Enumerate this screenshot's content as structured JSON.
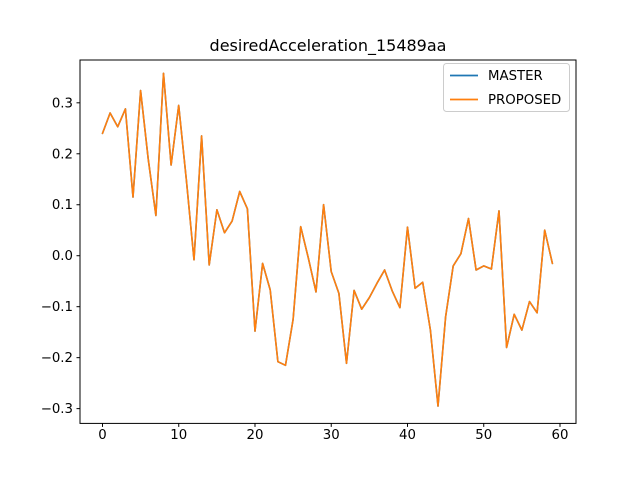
{
  "title": "desiredAcceleration_15489aa",
  "colors": {
    "master": "#1f77b4",
    "proposed": "#ff7f0e",
    "legend_border": "#cccccc",
    "axes": "#000000",
    "background": "#ffffff"
  },
  "legend": {
    "position": "upper right",
    "entries": [
      {
        "label": "MASTER",
        "color": "#1f77b4"
      },
      {
        "label": "PROPOSED",
        "color": "#ff7f0e"
      }
    ]
  },
  "chart_data": {
    "type": "line",
    "title": "desiredAcceleration_15489aa",
    "xlabel": "",
    "ylabel": "",
    "grid": false,
    "legend_position": "upper right",
    "xlim": [
      -2.95,
      62.1
    ],
    "ylim": [
      -0.329,
      0.384
    ],
    "xticks": [
      0,
      10,
      20,
      30,
      40,
      50,
      60
    ],
    "yticks": [
      -0.3,
      -0.2,
      -0.1,
      0.0,
      0.1,
      0.2,
      0.3
    ],
    "x": [
      0,
      1,
      2,
      3,
      4,
      5,
      6,
      7,
      8,
      9,
      10,
      11,
      12,
      13,
      14,
      15,
      16,
      17,
      18,
      19,
      20,
      21,
      22,
      23,
      24,
      25,
      26,
      27,
      28,
      29,
      30,
      31,
      32,
      33,
      34,
      35,
      36,
      37,
      38,
      39,
      40,
      41,
      42,
      43,
      44,
      45,
      46,
      47,
      48,
      49,
      50,
      51,
      52,
      53,
      54,
      55,
      56,
      57,
      58,
      59
    ],
    "series": [
      {
        "name": "MASTER",
        "color": "#1f77b4",
        "values": [
          0.24,
          0.28,
          0.253,
          0.288,
          0.115,
          0.324,
          0.19,
          0.079,
          0.358,
          0.178,
          0.295,
          0.148,
          -0.008,
          0.235,
          -0.018,
          0.09,
          0.045,
          0.068,
          0.126,
          0.092,
          -0.148,
          -0.015,
          -0.067,
          -0.208,
          -0.215,
          -0.125,
          0.057,
          -0.005,
          -0.071,
          0.1,
          -0.031,
          -0.074,
          -0.211,
          -0.068,
          -0.105,
          -0.082,
          -0.054,
          -0.028,
          -0.069,
          -0.102,
          0.056,
          -0.064,
          -0.052,
          -0.146,
          -0.295,
          -0.12,
          -0.02,
          0.004,
          0.073,
          -0.028,
          -0.02,
          -0.026,
          0.088,
          -0.18,
          -0.115,
          -0.146,
          -0.09,
          -0.112,
          0.05,
          -0.015
        ]
      },
      {
        "name": "PROPOSED",
        "color": "#ff7f0e",
        "values": [
          0.24,
          0.28,
          0.253,
          0.288,
          0.115,
          0.324,
          0.19,
          0.079,
          0.358,
          0.178,
          0.295,
          0.148,
          -0.008,
          0.235,
          -0.018,
          0.09,
          0.045,
          0.068,
          0.126,
          0.092,
          -0.148,
          -0.015,
          -0.067,
          -0.208,
          -0.215,
          -0.125,
          0.057,
          -0.005,
          -0.071,
          0.1,
          -0.031,
          -0.074,
          -0.211,
          -0.068,
          -0.105,
          -0.082,
          -0.054,
          -0.028,
          -0.069,
          -0.102,
          0.056,
          -0.064,
          -0.052,
          -0.146,
          -0.295,
          -0.12,
          -0.02,
          0.004,
          0.073,
          -0.028,
          -0.02,
          -0.026,
          0.088,
          -0.18,
          -0.115,
          -0.146,
          -0.09,
          -0.112,
          0.05,
          -0.015
        ]
      }
    ]
  }
}
